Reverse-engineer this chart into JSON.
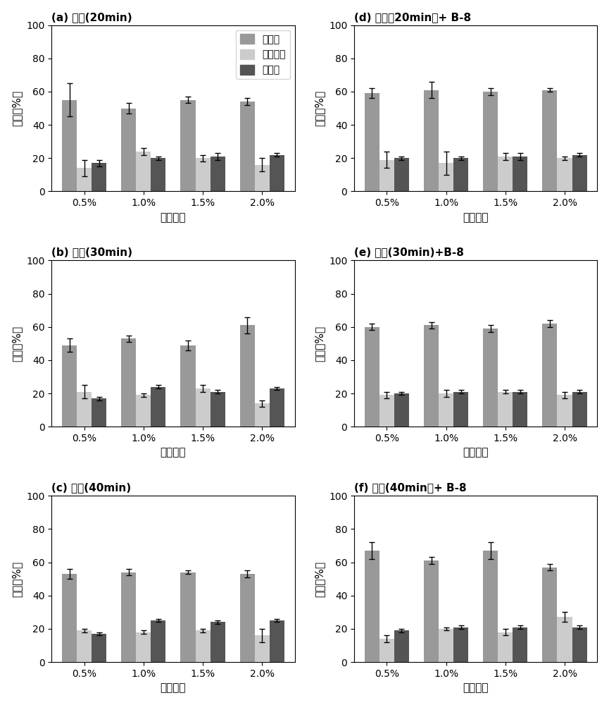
{
  "subplots": [
    {
      "label": "a",
      "title_cn": "(a) 硫酸(20min)",
      "xlabel_cn": "硫酸浓度",
      "ylabel_cn": "含量（%）",
      "categories": [
        "0.5%",
        "1.0%",
        "1.5%",
        "2.0%"
      ],
      "cellulose": [
        55,
        50,
        55,
        54
      ],
      "hemicellulose": [
        14,
        24,
        20,
        16
      ],
      "lignin": [
        17,
        20,
        21,
        22
      ],
      "cellulose_err": [
        10,
        3,
        2,
        2
      ],
      "hemicellulose_err": [
        5,
        2,
        2,
        4
      ],
      "lignin_err": [
        2,
        1,
        2,
        1
      ],
      "show_legend": true,
      "row": 0,
      "col": 0
    },
    {
      "label": "d",
      "title_cn": "(d) 硫酸（20min）+ B-8",
      "xlabel_cn": "硫酸浓度",
      "ylabel_cn": "含量（%）",
      "categories": [
        "0.5%",
        "1.0%",
        "1.5%",
        "2.0%"
      ],
      "cellulose": [
        59,
        61,
        60,
        61
      ],
      "hemicellulose": [
        19,
        17,
        21,
        20
      ],
      "lignin": [
        20,
        20,
        21,
        22
      ],
      "cellulose_err": [
        3,
        5,
        2,
        1
      ],
      "hemicellulose_err": [
        5,
        7,
        2,
        1
      ],
      "lignin_err": [
        1,
        1,
        2,
        1
      ],
      "show_legend": false,
      "row": 0,
      "col": 1
    },
    {
      "label": "b",
      "title_cn": "(b) 硫酸(30min)",
      "xlabel_cn": "硫酸浓度",
      "ylabel_cn": "含量（%）",
      "categories": [
        "0.5%",
        "1.0%",
        "1.5%",
        "2.0%"
      ],
      "cellulose": [
        49,
        53,
        49,
        61
      ],
      "hemicellulose": [
        21,
        19,
        23,
        14
      ],
      "lignin": [
        17,
        24,
        21,
        23
      ],
      "cellulose_err": [
        4,
        2,
        3,
        5
      ],
      "hemicellulose_err": [
        4,
        1,
        2,
        2
      ],
      "lignin_err": [
        1,
        1,
        1,
        1
      ],
      "show_legend": false,
      "row": 1,
      "col": 0
    },
    {
      "label": "e",
      "title_cn": "(e) 硫酸(30min)+B-8",
      "xlabel_cn": "硫酸浓度",
      "ylabel_cn": "含量（%）",
      "categories": [
        "0.5%",
        "1.0%",
        "1.5%",
        "2.0%"
      ],
      "cellulose": [
        60,
        61,
        59,
        62
      ],
      "hemicellulose": [
        19,
        20,
        21,
        19
      ],
      "lignin": [
        20,
        21,
        21,
        21
      ],
      "cellulose_err": [
        2,
        2,
        2,
        2
      ],
      "hemicellulose_err": [
        2,
        2,
        1,
        2
      ],
      "lignin_err": [
        1,
        1,
        1,
        1
      ],
      "show_legend": false,
      "row": 1,
      "col": 1
    },
    {
      "label": "c",
      "title_cn": "(c) 硫酸(40min)",
      "xlabel_cn": "硫酸浓度",
      "ylabel_cn": "含量（%）",
      "categories": [
        "0.5%",
        "1.0%",
        "1.5%",
        "2.0%"
      ],
      "cellulose": [
        53,
        54,
        54,
        53
      ],
      "hemicellulose": [
        19,
        18,
        19,
        16
      ],
      "lignin": [
        17,
        25,
        24,
        25
      ],
      "cellulose_err": [
        3,
        2,
        1,
        2
      ],
      "hemicellulose_err": [
        1,
        1,
        1,
        4
      ],
      "lignin_err": [
        1,
        1,
        1,
        1
      ],
      "show_legend": false,
      "row": 2,
      "col": 0
    },
    {
      "label": "f",
      "title_cn": "(f) 硫酸(40min）+ B-8",
      "xlabel_cn": "硫酸浓度",
      "ylabel_cn": "含量（%）",
      "categories": [
        "0.5%",
        "1.0%",
        "1.5%",
        "2.0%"
      ],
      "cellulose": [
        67,
        61,
        67,
        57
      ],
      "hemicellulose": [
        14,
        20,
        18,
        27
      ],
      "lignin": [
        19,
        21,
        21,
        21
      ],
      "cellulose_err": [
        5,
        2,
        5,
        2
      ],
      "hemicellulose_err": [
        2,
        1,
        2,
        3
      ],
      "lignin_err": [
        1,
        1,
        1,
        1
      ],
      "show_legend": false,
      "row": 2,
      "col": 1
    }
  ],
  "colors": {
    "cellulose": "#999999",
    "hemicellulose": "#cccccc",
    "lignin": "#555555"
  },
  "legend_labels_cn": [
    "纤维素",
    "半纤维素",
    "木质素"
  ],
  "ylim": [
    0,
    100
  ],
  "yticks": [
    0,
    20,
    40,
    60,
    80,
    100
  ],
  "bar_width": 0.25,
  "figsize": [
    8.65,
    10.0
  ],
  "dpi": 100
}
